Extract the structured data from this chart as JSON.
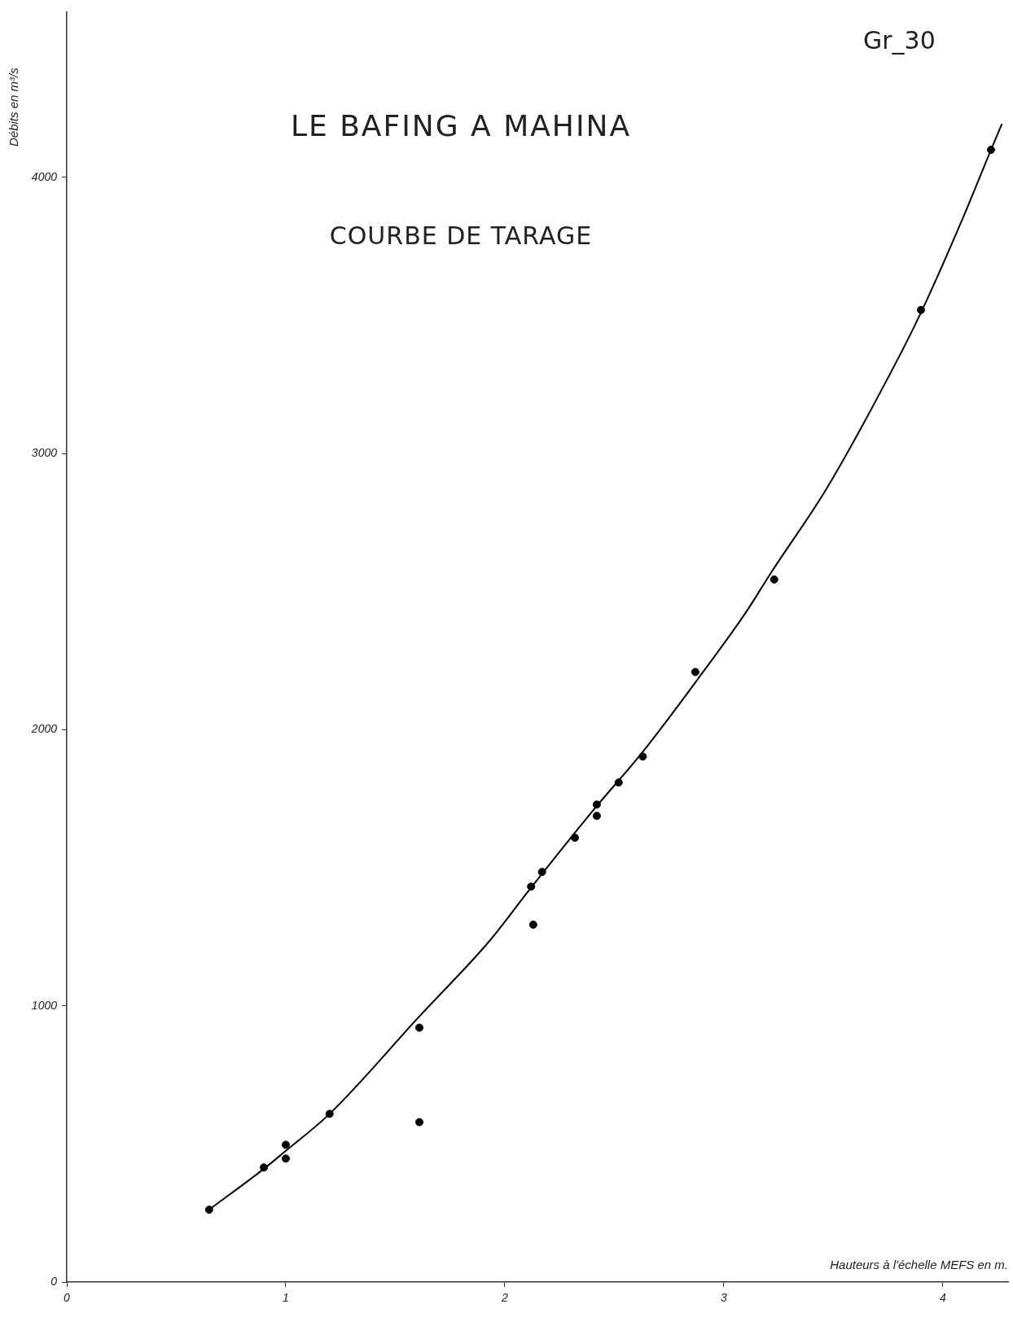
{
  "chart_data": {
    "type": "scatter",
    "title": "LE BAFING A MAHINA",
    "subtitle": "COURBE DE TARAGE",
    "xlabel": "Hauteurs à l'échelle MEFS en m.",
    "ylabel": "Débits en m³/s",
    "annotations": [
      "Gr_30"
    ],
    "xlim": [
      0,
      4.3
    ],
    "ylim": [
      0,
      4600
    ],
    "xticks": [
      0,
      1,
      2,
      3,
      4
    ],
    "yticks": [
      0,
      1000,
      2000,
      3000,
      4000
    ],
    "grid": false,
    "series": [
      {
        "color": "#000000",
        "marker": "circle",
        "x": [
          0.65,
          0.9,
          1.0,
          1.0,
          1.2,
          1.61,
          1.61,
          2.12,
          2.13,
          2.17,
          2.32,
          2.42,
          2.42,
          2.52,
          2.63,
          2.87,
          3.23,
          3.9,
          4.22
        ],
        "values": [
          262,
          415,
          497,
          447,
          609,
          921,
          579,
          1432,
          1294,
          1485,
          1609,
          1688,
          1729,
          1809,
          1903,
          2209,
          2544,
          3520,
          4100
        ]
      },
      {
        "type": "line",
        "color": "#000000",
        "marker": "none",
        "x": [
          0.65,
          0.9,
          1.0,
          1.2,
          1.61,
          1.93,
          2.11,
          2.4,
          2.63,
          2.88,
          3.1,
          3.22,
          3.47,
          3.78,
          3.9,
          4.09,
          4.22,
          4.27
        ],
        "values": [
          262,
          410,
          475,
          609,
          962,
          1235,
          1418,
          1705,
          1920,
          2182,
          2424,
          2574,
          2874,
          3320,
          3510,
          3850,
          4100,
          4194
        ]
      }
    ]
  }
}
